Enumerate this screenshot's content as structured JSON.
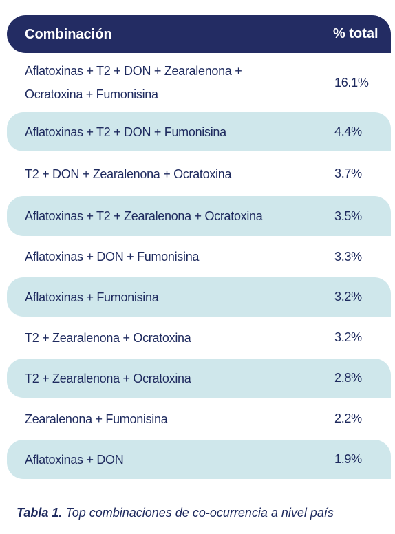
{
  "table": {
    "header": [
      "Combinación",
      "% total"
    ],
    "rows": [
      [
        "Aflatoxinas + T2 + DON + Zearalenona + Ocratoxina + Fumonisina",
        "16.1%"
      ],
      [
        "Aflatoxinas + T2 + DON + Fumonisina",
        "4.4%"
      ],
      [
        "T2 + DON + Zearalenona + Ocratoxina",
        "3.7%"
      ],
      [
        "Aflatoxinas + T2 + Zearalenona + Ocratoxina",
        "3.5%"
      ],
      [
        "Aflatoxinas + DON + Fumonisina",
        "3.3%"
      ],
      [
        "Aflatoxinas + Fumonisina",
        "3.2%"
      ],
      [
        "T2 + Zearalenona + Ocratoxina",
        "3.2%"
      ],
      [
        "T2 + Zearalenona + Ocratoxina",
        "2.8%"
      ],
      [
        "Zearalenona + Fumonisina",
        "2.2%"
      ],
      [
        "Aflatoxinas + DON",
        "1.9%"
      ]
    ]
  },
  "caption": {
    "label": "Tabla 1.",
    "text": "Top combinaciones de co-ocurrencia a nivel país"
  }
}
